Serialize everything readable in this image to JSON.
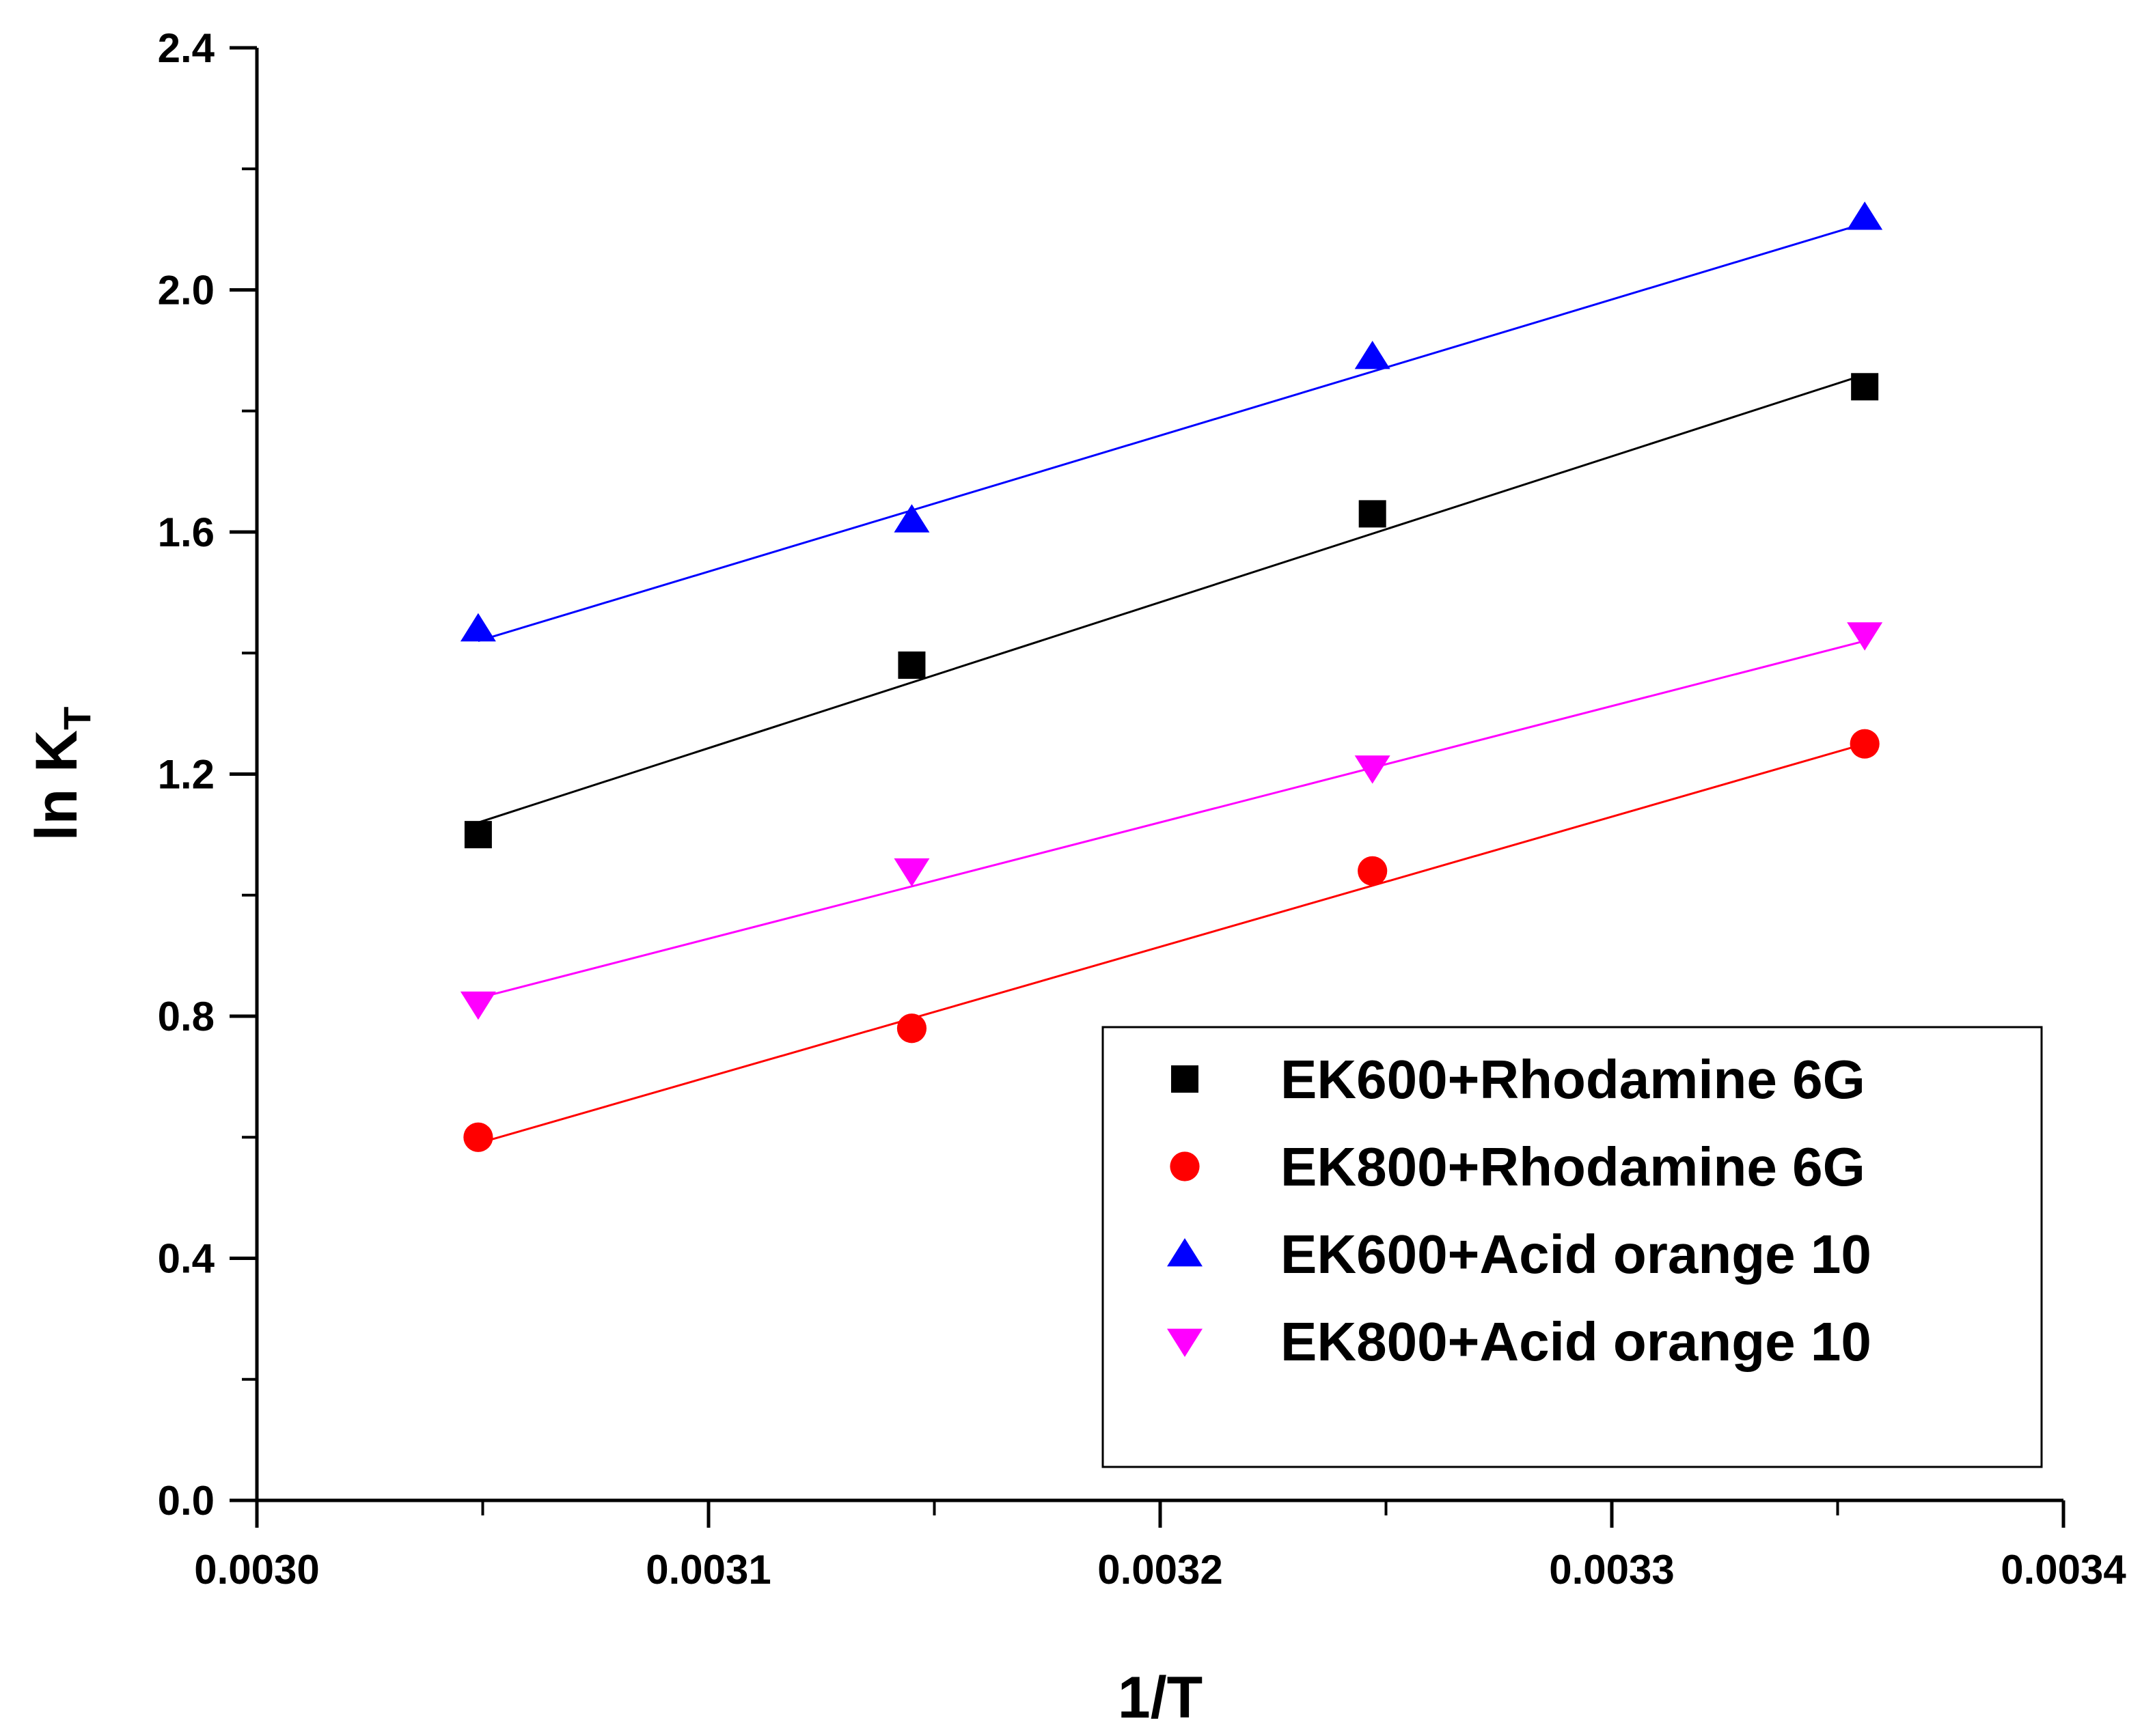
{
  "chart_data": {
    "type": "scatter",
    "title": "",
    "xlabel": "1/T",
    "ylabel_main": "ln K",
    "ylabel_sub": "T",
    "xlim": [
      0.003,
      0.0034
    ],
    "ylim": [
      0.0,
      2.4
    ],
    "x_ticks": [
      "0.0030",
      "0.0031",
      "0.0032",
      "0.0033",
      "0.0034"
    ],
    "x_tick_values": [
      0.003,
      0.0031,
      0.0032,
      0.0033,
      0.0034
    ],
    "y_ticks": [
      "0.0",
      "0.4",
      "0.8",
      "1.2",
      "1.6",
      "2.0",
      "2.4"
    ],
    "y_tick_values": [
      0.0,
      0.4,
      0.8,
      1.2,
      1.6,
      2.0,
      2.4
    ],
    "grid": false,
    "legend_position": "bottom-right",
    "series": [
      {
        "name": "EK600+Rhodamine 6G",
        "marker": "square",
        "color": "#000000",
        "x": [
          0.003049,
          0.003145,
          0.003247,
          0.003356
        ],
        "y": [
          1.1,
          1.38,
          1.63,
          1.84
        ],
        "fit": {
          "x": [
            0.003049,
            0.003356
          ],
          "y": [
            1.12,
            1.86
          ]
        }
      },
      {
        "name": "EK800+Rhodamine 6G",
        "marker": "circle",
        "color": "#ff0000",
        "x": [
          0.003049,
          0.003145,
          0.003247,
          0.003356
        ],
        "y": [
          0.6,
          0.78,
          1.04,
          1.25
        ],
        "fit": {
          "x": [
            0.003049,
            0.003356
          ],
          "y": [
            0.59,
            1.25
          ]
        }
      },
      {
        "name": "EK600+Acid orange 10",
        "marker": "triangle-up",
        "color": "#0000ff",
        "x": [
          0.003049,
          0.003145,
          0.003247,
          0.003356
        ],
        "y": [
          1.44,
          1.62,
          1.89,
          2.12
        ],
        "fit": {
          "x": [
            0.003049,
            0.003356
          ],
          "y": [
            1.42,
            2.11
          ]
        }
      },
      {
        "name": "EK800+Acid orange 10",
        "marker": "triangle-down",
        "color": "#ff00ff",
        "x": [
          0.003049,
          0.003145,
          0.003247,
          0.003356
        ],
        "y": [
          0.82,
          1.04,
          1.21,
          1.43
        ],
        "fit": {
          "x": [
            0.003049,
            0.003356
          ],
          "y": [
            0.83,
            1.42
          ]
        }
      }
    ]
  }
}
